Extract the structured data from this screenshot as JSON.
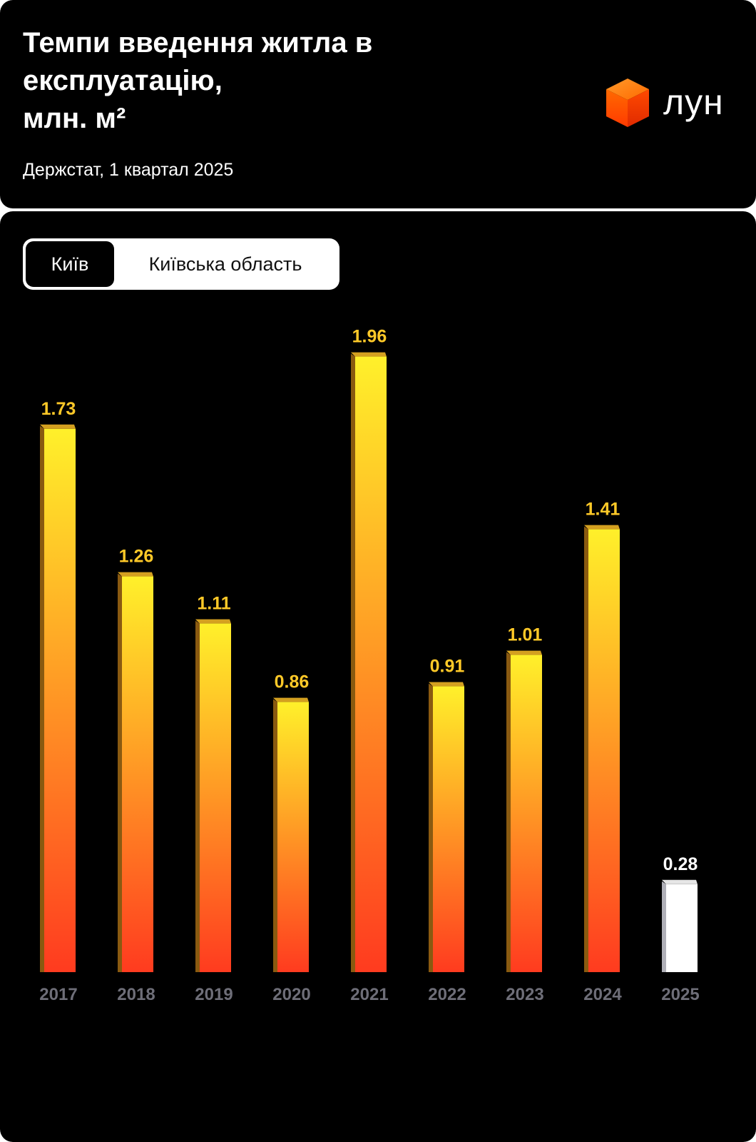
{
  "header": {
    "title_lines": [
      "Темпи введення житла в",
      "експлуатацію,",
      "млн. м²"
    ],
    "source": "Держстат, 1 квартал 2025",
    "logo_text": "лун",
    "logo_color": "#ff5a00"
  },
  "toggle": {
    "active_label": "Київ",
    "inactive_label": "Київська область"
  },
  "chart_data": {
    "type": "bar",
    "categories": [
      "2017",
      "2018",
      "2019",
      "2020",
      "2021",
      "2022",
      "2023",
      "2024",
      "2025"
    ],
    "values": [
      1.73,
      1.26,
      1.11,
      0.86,
      1.96,
      0.91,
      1.01,
      1.41,
      0.28
    ],
    "highlight_last": true,
    "colors": {
      "gradient_top": "#fff02a",
      "gradient_bottom": "#ff3b1f",
      "value_label": "#ffc928",
      "last_bar": "#ffffff",
      "year_label": "#6e6e78"
    },
    "grid": false,
    "legend": "none"
  }
}
